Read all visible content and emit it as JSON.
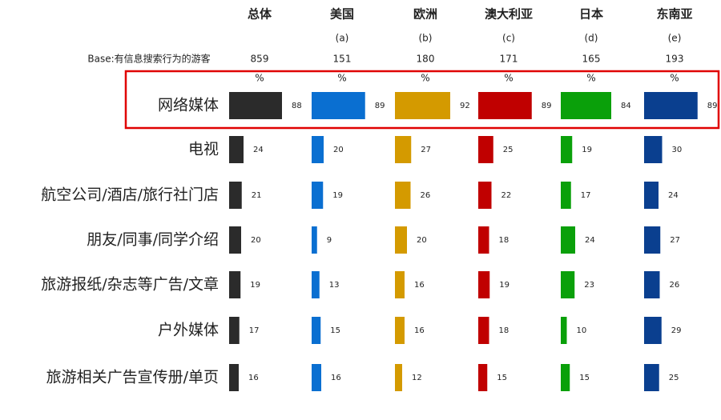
{
  "chart_data": {
    "type": "bar",
    "base_label": "Base:有信息搜索行为的游客",
    "unit": "%",
    "categories": [
      "网络媒体",
      "电视",
      "航空公司/酒店/旅行社门店",
      "朋友/同事/同学介绍",
      "旅游报纸/杂志等广告/文章",
      "户外媒体",
      "旅游相关广告宣传册/单页"
    ],
    "series": [
      {
        "name": "总体",
        "base": 859,
        "color": "#2b2b2b",
        "values": [
          88,
          24,
          21,
          20,
          19,
          17,
          16
        ]
      },
      {
        "name": "美国",
        "code": "(a)",
        "base": 151,
        "color": "#0a6fd1",
        "values": [
          89,
          20,
          19,
          9,
          13,
          15,
          16
        ]
      },
      {
        "name": "欧洲",
        "code": "(b)",
        "base": 180,
        "color": "#d49a00",
        "values": [
          92,
          27,
          26,
          20,
          16,
          16,
          12
        ]
      },
      {
        "name": "澳大利亚",
        "code": "(c)",
        "base": 171,
        "color": "#c00000",
        "values": [
          89,
          25,
          22,
          18,
          19,
          18,
          15
        ]
      },
      {
        "name": "日本",
        "code": "(d)",
        "base": 165,
        "color": "#0aa00a",
        "values": [
          84,
          19,
          17,
          24,
          23,
          10,
          15
        ]
      },
      {
        "name": "东南亚",
        "code": "(e)",
        "base": 193,
        "color": "#0a3f8f",
        "values": [
          89,
          30,
          24,
          27,
          26,
          29,
          25
        ]
      }
    ]
  }
}
